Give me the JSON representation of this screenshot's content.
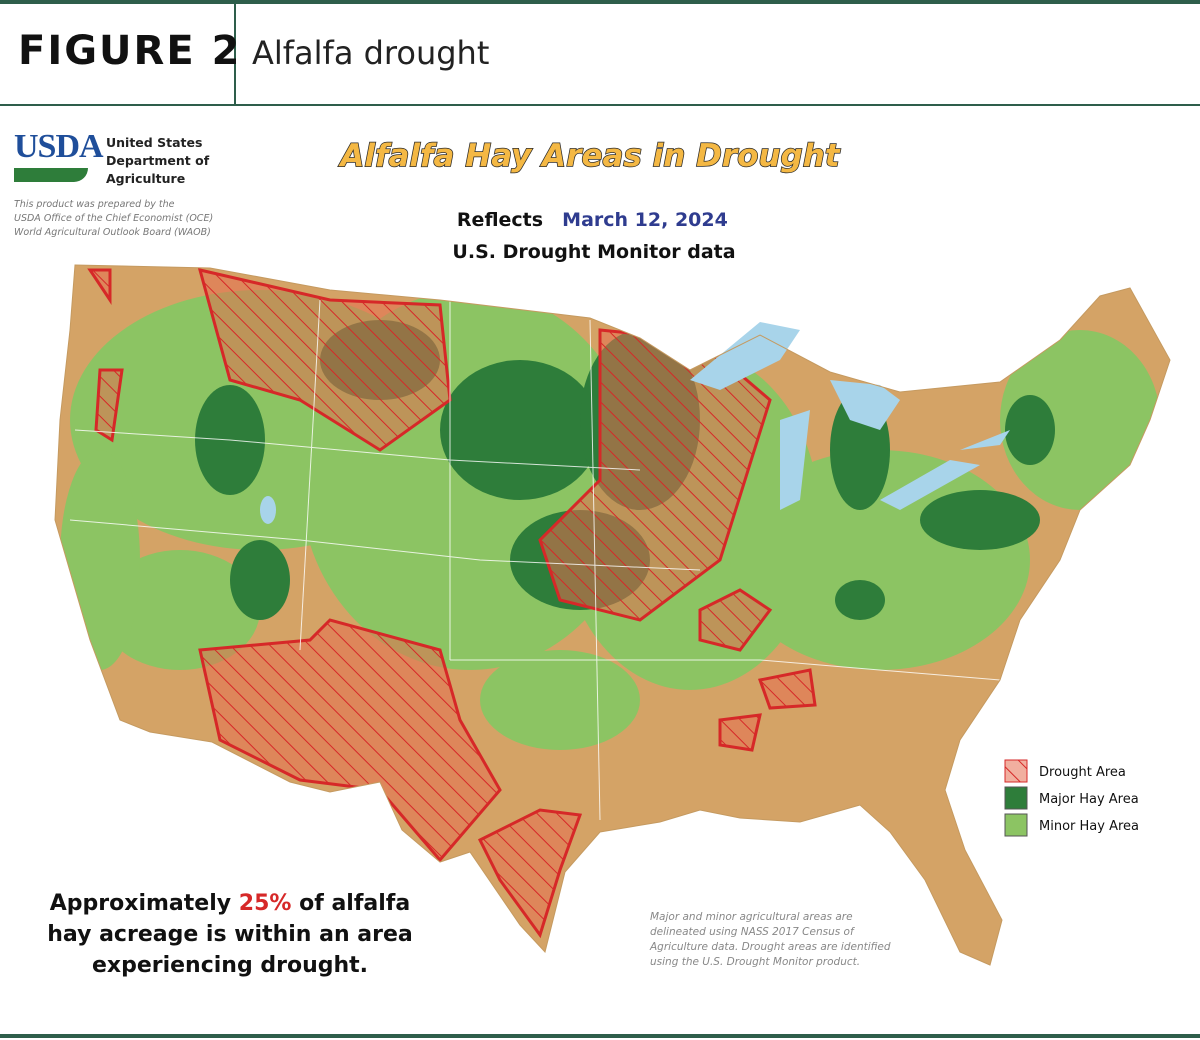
{
  "header": {
    "figure_label": "FIGURE 2",
    "title": "Alfalfa drought"
  },
  "source": {
    "logo": "USDA",
    "agency_lines": [
      "United States",
      "Department of",
      "Agriculture"
    ],
    "note_lines": [
      "This product was prepared by the",
      "USDA Office of the Chief Economist (OCE)",
      "World Agricultural Outlook Board (WAOB)"
    ]
  },
  "map": {
    "title": "Alfalfa Hay Areas in Drought",
    "reflects_label": "Reflects",
    "date": "March 12, 2024",
    "subtitle": "U.S. Drought Monitor data",
    "legend": [
      {
        "label": "Drought Area"
      },
      {
        "label": "Major Hay Area"
      },
      {
        "label": "Minor Hay Area"
      }
    ],
    "callout": {
      "before": "Approximately",
      "highlight": "25%",
      "after": "of alfalfa hay acreage is within an area experiencing drought."
    },
    "methodology_note": "Major and minor agricultural areas are delineated using NASS 2017 Census of Agriculture data.  Drought areas are identified using the U.S. Drought Monitor product."
  }
}
